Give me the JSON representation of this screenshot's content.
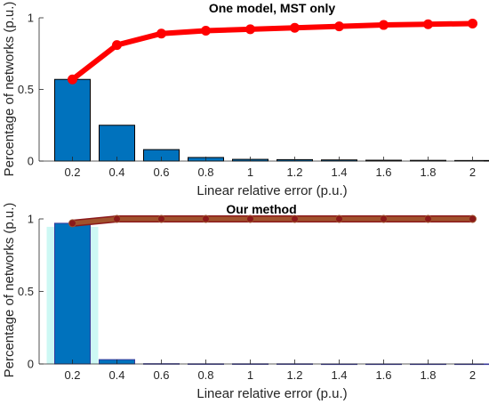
{
  "chart_data": [
    {
      "type": "bar",
      "title": "One model, MST only",
      "xlabel": "Linear relative error (p.u.)",
      "ylabel": "Percentage of networks (p.u.)",
      "categories": [
        "0.2",
        "0.4",
        "0.6",
        "0.8",
        "1",
        "1.2",
        "1.4",
        "1.6",
        "1.8",
        "2"
      ],
      "x": [
        0.2,
        0.4,
        0.6,
        0.8,
        1.0,
        1.2,
        1.4,
        1.6,
        1.8,
        2.0
      ],
      "xlim": [
        0.05,
        2.05
      ],
      "ylim": [
        0,
        1
      ],
      "yticks": [
        0,
        0.5,
        1
      ],
      "yticklabels": [
        "0",
        "0.5",
        "1"
      ],
      "grid": false,
      "series": [
        {
          "kind": "bar",
          "color": "#0072BD",
          "edge": "#000000",
          "values": [
            0.57,
            0.25,
            0.08,
            0.025,
            0.012,
            0.01,
            0.008,
            0.006,
            0.005,
            0.004
          ]
        },
        {
          "kind": "line",
          "color": "#FF0000",
          "values": [
            0.57,
            0.81,
            0.89,
            0.91,
            0.92,
            0.93,
            0.94,
            0.95,
            0.955,
            0.96
          ]
        }
      ]
    },
    {
      "type": "bar",
      "title": "Our method",
      "xlabel": "Linear relative error (p.u.)",
      "ylabel": "Percentage of networks (p.u.)",
      "categories": [
        "0.2",
        "0.4",
        "0.6",
        "0.8",
        "1",
        "1.2",
        "1.4",
        "1.6",
        "1.8",
        "2"
      ],
      "x": [
        0.2,
        0.4,
        0.6,
        0.8,
        1.0,
        1.2,
        1.4,
        1.6,
        1.8,
        2.0
      ],
      "xlim": [
        0.05,
        2.05
      ],
      "ylim": [
        0,
        1
      ],
      "yticks": [
        0,
        0.5,
        1
      ],
      "yticklabels": [
        "0",
        "0.5",
        "1"
      ],
      "grid": false,
      "band_color": "#E8A8F0",
      "band_halfwidth": 0.025,
      "bar_halo_color": "#B8F5F0",
      "series": [
        {
          "kind": "bar",
          "color": "#0072BD",
          "edge": "#3A3A9A",
          "values": [
            0.97,
            0.03,
            0.002,
            0.001,
            0.001,
            0.001,
            0.0,
            0.0,
            0.0,
            0.0
          ]
        },
        {
          "kind": "line",
          "color": "#A0522D",
          "edge": "#8B1A1A",
          "values": [
            0.97,
            1.0,
            1.0,
            1.0,
            1.0,
            1.0,
            1.0,
            1.0,
            1.0,
            1.0
          ]
        }
      ]
    }
  ]
}
